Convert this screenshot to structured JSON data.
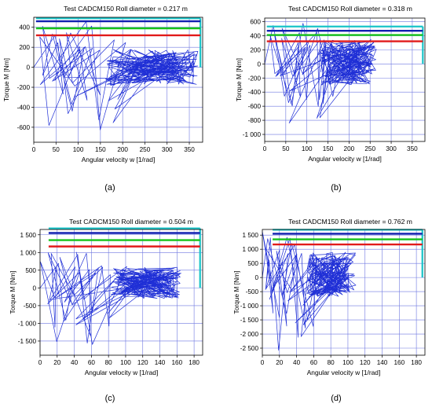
{
  "colors": {
    "trace": "#1f2fd6",
    "cyan": "#19c4c8",
    "blue": "#1020b0",
    "green": "#16c21a",
    "red": "#e11b1b",
    "grid": "#6f78e0",
    "axis": "#000000"
  },
  "panels": [
    {
      "label": "(a)",
      "title": "Test  CADCM150  Roll diameter = 0.217  m",
      "xlabel": "Angular velocity w [1/rad]",
      "ylabel": "Torque M [Nm]",
      "xlim": [
        0,
        380
      ],
      "ylim": [
        -750,
        500
      ],
      "xticks": [
        0,
        50,
        100,
        150,
        200,
        250,
        300,
        350
      ],
      "yticks": [
        -600,
        -400,
        -200,
        0,
        200,
        400
      ],
      "ytick_labels": [
        "-600",
        "-400",
        "-200",
        "0",
        "200",
        "400"
      ],
      "grid": true,
      "limit_lines": {
        "cyan": 490,
        "blue": 460,
        "green": 390,
        "red": 320,
        "x_start": 5,
        "x_end": 375,
        "cyan_drop_to": 0
      },
      "envelope": {
        "min": -640,
        "max": 470,
        "x_max": 370,
        "dense_start": 160,
        "dense_band": [
          -180,
          180
        ]
      },
      "seed": 11
    },
    {
      "label": "(b)",
      "title": "Test  CADCM150  Roll diameter = 0.318  m",
      "xlabel": "Angular velocity w [1/rad]",
      "ylabel": "Torque M [Nm]",
      "xlim": [
        0,
        380
      ],
      "ylim": [
        -1100,
        650
      ],
      "xticks": [
        0,
        50,
        100,
        150,
        200,
        250,
        300,
        350
      ],
      "yticks": [
        -1000,
        -800,
        -600,
        -400,
        -200,
        0,
        200,
        400,
        600
      ],
      "ytick_labels": [
        "-1 000",
        "-800",
        "-600",
        "-400",
        "-200",
        "0",
        "200",
        "400",
        "600"
      ],
      "grid": true,
      "limit_lines": {
        "cyan": 530,
        "blue": 470,
        "green": 410,
        "red": 320,
        "x_start": 5,
        "x_end": 375,
        "cyan_drop_to": 0
      },
      "envelope": {
        "min": -1000,
        "max": 620,
        "x_max": 265,
        "dense_start": 130,
        "dense_band": [
          -300,
          350
        ]
      },
      "seed": 27
    },
    {
      "label": "(c)",
      "title": "Test  CADCM150  Roll diameter = 0.504  m",
      "xlabel": "Angular velocity w [1/rad]",
      "ylabel": "Torque M [Nm]",
      "xlim": [
        0,
        190
      ],
      "ylim": [
        -1900,
        1650
      ],
      "xticks": [
        0,
        20,
        40,
        60,
        80,
        100,
        120,
        140,
        160,
        180
      ],
      "yticks": [
        -1500,
        -1000,
        -500,
        0,
        500,
        1000,
        1500
      ],
      "ytick_labels": [
        "-1 500",
        "-1 000",
        "-500",
        "0",
        "500",
        "1 000",
        "1 500"
      ],
      "grid": true,
      "limit_lines": {
        "cyan": 1680,
        "blue": 1550,
        "green": 1350,
        "red": 1170,
        "x_start": 10,
        "x_end": 187,
        "cyan_drop_to": 0
      },
      "envelope": {
        "min": -1800,
        "max": 1100,
        "x_max": 165,
        "dense_start": 82,
        "dense_band": [
          -300,
          600
        ]
      },
      "seed": 43
    },
    {
      "label": "(d)",
      "title": "Test  CADCM150  Roll diameter = 0.762  m",
      "xlabel": "Angular velocity w [1/rad]",
      "ylabel": "Torque M [Nm]",
      "xlim": [
        0,
        190
      ],
      "ylim": [
        -2750,
        1700
      ],
      "xticks": [
        0,
        20,
        40,
        60,
        80,
        100,
        120,
        140,
        160,
        180
      ],
      "yticks": [
        -2500,
        -2000,
        -1500,
        -1000,
        -500,
        0,
        500,
        1000,
        1500
      ],
      "ytick_labels": [
        "-2 500",
        "-2 000",
        "-1 500",
        "-1 000",
        "-500",
        "0",
        "500",
        "1 000",
        "1 500"
      ],
      "grid": true,
      "limit_lines": {
        "cyan": 1690,
        "blue": 1550,
        "green": 1350,
        "red": 1170,
        "x_start": 12,
        "x_end": 187,
        "cyan_drop_to": 0
      },
      "envelope": {
        "min": -2600,
        "max": 1650,
        "x_max": 110,
        "dense_start": 52,
        "dense_band": [
          -700,
          900
        ]
      },
      "seed": 59
    }
  ]
}
